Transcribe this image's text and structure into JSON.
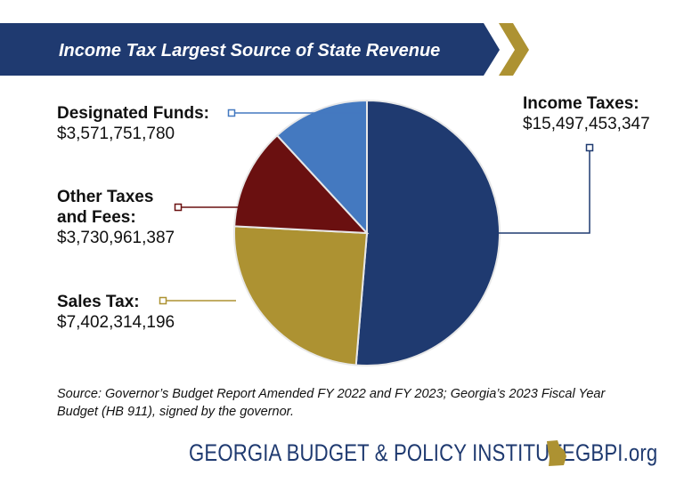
{
  "chart_data": {
    "type": "pie",
    "title": "Income Tax Largest Source of State Revenue",
    "start": "12 o'clock",
    "direction": "clockwise",
    "slices": [
      {
        "name": "Income Taxes:",
        "value": 15497453347,
        "label": "$15,497,453,347",
        "color": "#1f3a70"
      },
      {
        "name": "Sales Tax:",
        "value": 7402314196,
        "label": "$7,402,314,196",
        "color": "#ad9232"
      },
      {
        "name": "Other Taxes and Fees:",
        "name_lines": [
          "Other Taxes",
          "and Fees:"
        ],
        "value": 3730961387,
        "label": "$3,730,961,387",
        "color": "#6a1010"
      },
      {
        "name": "Designated Funds:",
        "value": 3571751780,
        "label": "$3,571,751,780",
        "color": "#4479c0"
      }
    ]
  },
  "source": "Source: Governor’s Budget Report Amended FY 2022 and FY 2023; Georgia’s 2023 Fiscal Year Budget (HB 911), signed by the governor.",
  "footer": {
    "org": "GEORGIA BUDGET & POLICY INSTITUTE",
    "url": "GBPI.org"
  },
  "colors": {
    "banner": "#1f3a70",
    "gold": "#ad9232"
  }
}
